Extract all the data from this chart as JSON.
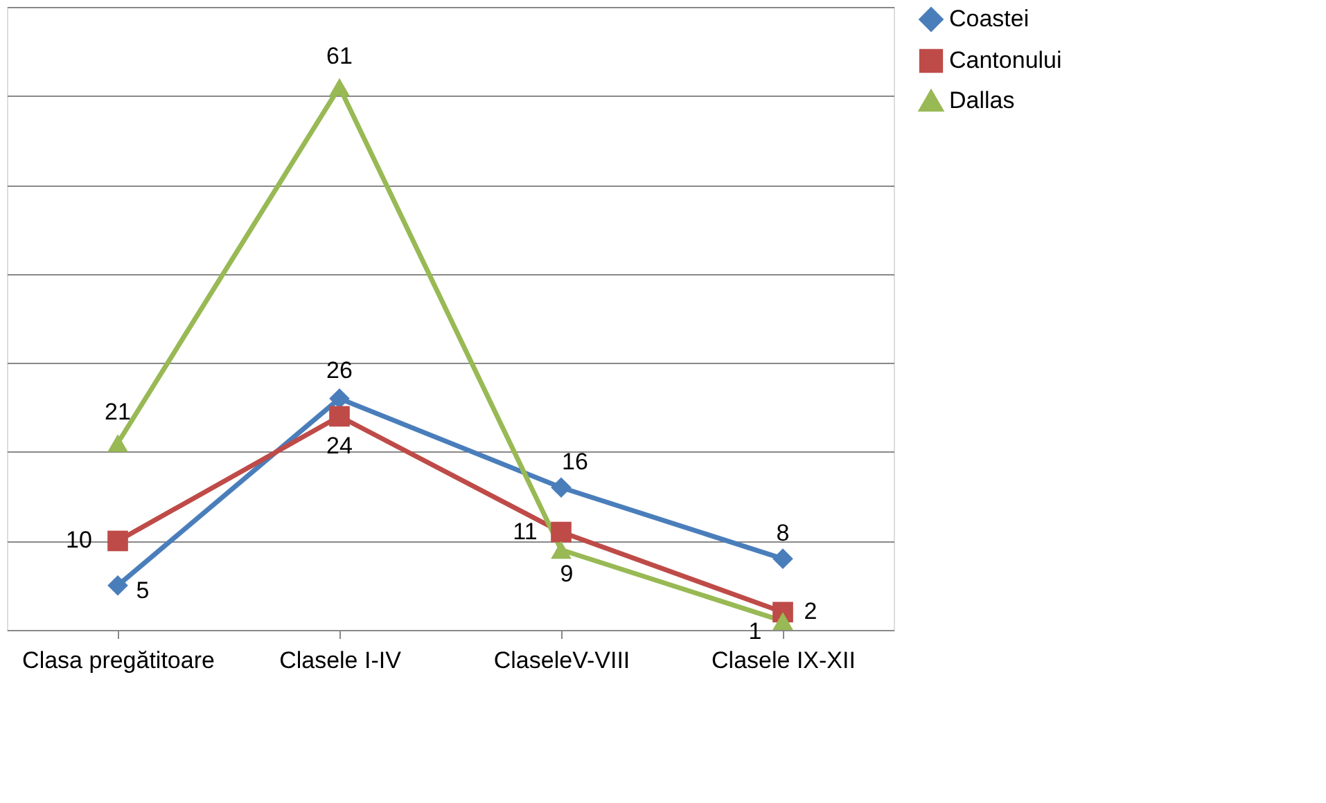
{
  "chart_data": {
    "type": "line",
    "categories": [
      "Clasa pregătitoare",
      "Clasele I-IV",
      "ClaseleV-VIII",
      "Clasele IX-XII"
    ],
    "series": [
      {
        "name": "Coastei",
        "color": "#4a7ebb",
        "values": [
          5,
          26,
          16,
          8
        ],
        "marker": "diamond"
      },
      {
        "name": "Cantonului",
        "color": "#be4b48",
        "values": [
          10,
          24,
          11,
          2
        ],
        "marker": "square"
      },
      {
        "name": "Dallas",
        "color": "#98b954",
        "values": [
          21,
          61,
          9,
          1
        ],
        "marker": "triangle"
      }
    ],
    "ylim": [
      0,
      70
    ],
    "yticks": [
      {
        "value": 0,
        "label": null
      },
      {
        "value": 10,
        "label": null
      },
      {
        "value": 20,
        "label": null
      },
      {
        "value": 30,
        "label": null
      },
      {
        "value": 40,
        "label": null
      },
      {
        "value": 50,
        "label": null
      },
      {
        "value": 60,
        "label": null
      },
      {
        "value": 70,
        "label": null
      }
    ],
    "grid": "y",
    "legend": "right",
    "tick_labels": "x",
    "data_labels": true,
    "line_style": "solid"
  }
}
